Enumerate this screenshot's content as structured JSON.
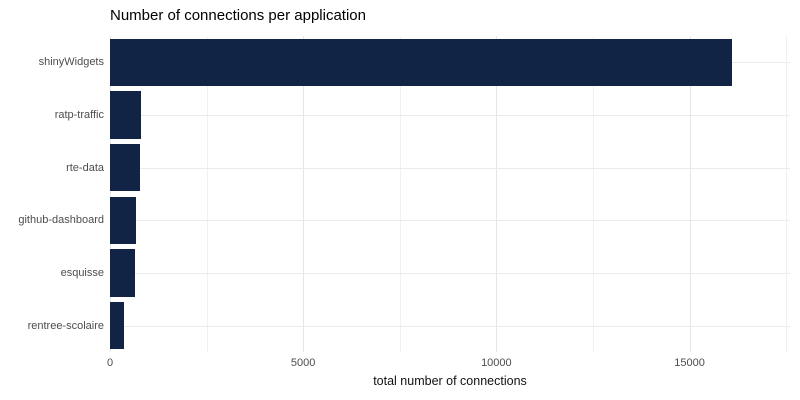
{
  "chart_data": {
    "type": "bar",
    "orientation": "horizontal",
    "title": "Number of connections per application",
    "xlabel": "total number of connections",
    "ylabel": "",
    "categories": [
      "shinyWidgets",
      "ratp-traffic",
      "rte-data",
      "github-dashboard",
      "esquisse",
      "rentree-scolaire"
    ],
    "values": [
      16090,
      805,
      780,
      675,
      650,
      370
    ],
    "xlim": [
      0,
      17600
    ],
    "x_major_ticks": [
      0,
      5000,
      10000,
      15000
    ],
    "x_major_tick_labels": [
      "0",
      "5000",
      "10000",
      "15000"
    ],
    "x_minor_ticks": [
      2500,
      7500,
      12500,
      17500
    ],
    "grid": "major+minor vertical, major horizontal at category centers",
    "legend": "none",
    "bar_color": "#112446"
  },
  "colors": {
    "bar": "#112446",
    "grid_major": "#e6e6e6",
    "grid_minor": "#f1f1f1",
    "axis_text": "#4d4d4d",
    "title_text": "#000000",
    "background": "#ffffff"
  }
}
